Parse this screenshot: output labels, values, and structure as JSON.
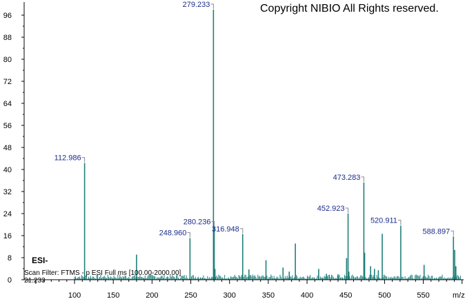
{
  "header": {
    "copyright": "Copyright NIBIO All Rights reserved."
  },
  "info": {
    "mode": "ESI-",
    "scan_filter": "Scan Filter: FTMS - p ESI Full ms [100.00-2000.00]",
    "retention_time": "21.233"
  },
  "colors": {
    "peak": "#1f7f7a",
    "label": "#1a2c8c",
    "axis": "#000000"
  },
  "chart_data": {
    "type": "bar",
    "xlabel": "m/z",
    "ylabel": "",
    "xlim": [
      35,
      602
    ],
    "ylim": [
      0,
      100
    ],
    "x_ticks": [
      100,
      150,
      200,
      250,
      300,
      350,
      400,
      450,
      500,
      550
    ],
    "y_ticks": [
      0,
      8,
      16,
      24,
      32,
      40,
      48,
      56,
      64,
      72,
      80,
      88,
      96
    ],
    "peaks": [
      {
        "mz": 112.986,
        "intensity": 43.2,
        "label": "112.986"
      },
      {
        "mz": 180.0,
        "intensity": 9.3,
        "label": ""
      },
      {
        "mz": 248.96,
        "intensity": 15.4,
        "label": "248.960"
      },
      {
        "mz": 279.233,
        "intensity": 100.0,
        "label": "279.233"
      },
      {
        "mz": 280.236,
        "intensity": 19.5,
        "label": "280.236"
      },
      {
        "mz": 281.2,
        "intensity": 4.0,
        "label": ""
      },
      {
        "mz": 316.948,
        "intensity": 16.9,
        "label": "316.948"
      },
      {
        "mz": 325.0,
        "intensity": 3.8,
        "label": ""
      },
      {
        "mz": 347.0,
        "intensity": 7.2,
        "label": ""
      },
      {
        "mz": 369.0,
        "intensity": 4.5,
        "label": ""
      },
      {
        "mz": 377.0,
        "intensity": 3.0,
        "label": ""
      },
      {
        "mz": 384.9,
        "intensity": 13.4,
        "label": ""
      },
      {
        "mz": 415.0,
        "intensity": 4.0,
        "label": ""
      },
      {
        "mz": 425.0,
        "intensity": 2.2,
        "label": ""
      },
      {
        "mz": 440.0,
        "intensity": 2.0,
        "label": ""
      },
      {
        "mz": 451.0,
        "intensity": 8.0,
        "label": ""
      },
      {
        "mz": 452.923,
        "intensity": 24.5,
        "label": "452.923"
      },
      {
        "mz": 454.0,
        "intensity": 3.0,
        "label": ""
      },
      {
        "mz": 473.283,
        "intensity": 36.0,
        "label": "473.283"
      },
      {
        "mz": 474.3,
        "intensity": 10.0,
        "label": ""
      },
      {
        "mz": 482.0,
        "intensity": 5.0,
        "label": ""
      },
      {
        "mz": 487.0,
        "intensity": 4.0,
        "label": ""
      },
      {
        "mz": 492.0,
        "intensity": 3.5,
        "label": ""
      },
      {
        "mz": 497.0,
        "intensity": 17.0,
        "label": ""
      },
      {
        "mz": 520.911,
        "intensity": 20.0,
        "label": "520.911"
      },
      {
        "mz": 551.0,
        "intensity": 5.5,
        "label": ""
      },
      {
        "mz": 588.897,
        "intensity": 16.0,
        "label": "588.897"
      },
      {
        "mz": 590.5,
        "intensity": 11.0,
        "label": ""
      },
      {
        "mz": 592.0,
        "intensity": 5.0,
        "label": ""
      }
    ]
  }
}
